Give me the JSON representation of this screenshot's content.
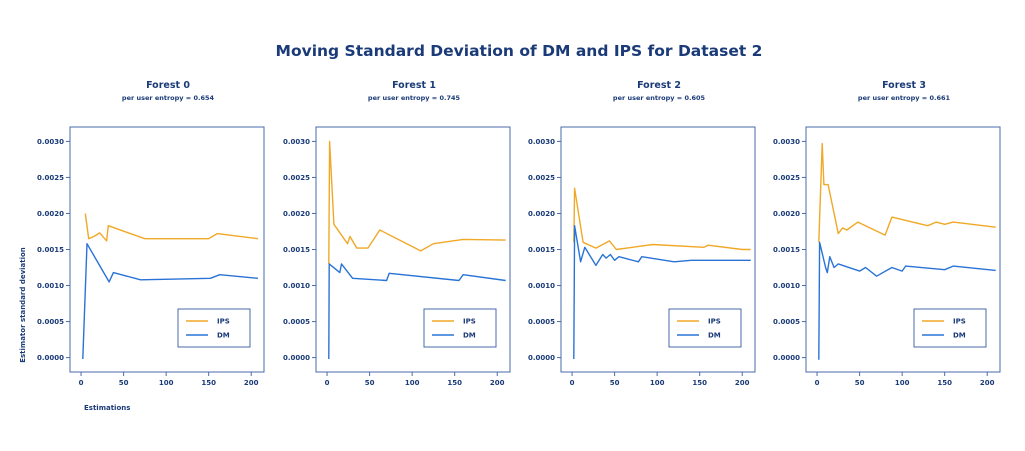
{
  "title": "Moving Standard Deviation of DM and IPS for Dataset 2",
  "ylabel": "Estimator standard deviation",
  "xlabel": "Estimations",
  "colors": {
    "IPS": "#f0a827",
    "DM": "#2a73d6",
    "axis": "#4a6aa8",
    "text": "#1a3a78"
  },
  "chart_data": [
    {
      "type": "line",
      "title": "Forest 0",
      "subtitle": "per user entropy = 0.654",
      "xlim": [
        -13,
        215
      ],
      "ylim": [
        -0.0002,
        0.0032
      ],
      "xticks": [
        "0",
        "50",
        "100",
        "150",
        "200"
      ],
      "yticks": [
        "0.0000",
        "0.0005",
        "0.0010",
        "0.0015",
        "0.0020",
        "0.0025",
        "0.0030"
      ],
      "legend": "lower-right",
      "series": [
        {
          "name": "IPS",
          "color": "#f0a827",
          "x": [
            5,
            9,
            15,
            22,
            30,
            32,
            75,
            150,
            160,
            208
          ],
          "y": [
            0.002,
            0.00165,
            0.00168,
            0.00173,
            0.00162,
            0.00183,
            0.00165,
            0.00165,
            0.00172,
            0.00165
          ]
        },
        {
          "name": "DM",
          "color": "#2a73d6",
          "x": [
            2,
            7,
            33,
            38,
            70,
            152,
            163,
            208
          ],
          "y": [
            -2e-05,
            0.00158,
            0.00105,
            0.00118,
            0.00108,
            0.0011,
            0.00115,
            0.0011
          ]
        }
      ]
    },
    {
      "type": "line",
      "title": "Forest 1",
      "subtitle": "per user entropy = 0.745",
      "xlim": [
        -13,
        215
      ],
      "ylim": [
        -0.0002,
        0.0032
      ],
      "xticks": [
        "0",
        "50",
        "100",
        "150",
        "200"
      ],
      "yticks": [
        "0.0000",
        "0.0005",
        "0.0010",
        "0.0015",
        "0.0020",
        "0.0025",
        "0.0030"
      ],
      "legend": "lower-right",
      "series": [
        {
          "name": "IPS",
          "color": "#f0a827",
          "x": [
            2,
            3,
            8,
            24,
            27,
            35,
            48,
            62,
            110,
            125,
            160,
            210
          ],
          "y": [
            0.0013,
            0.003,
            0.00185,
            0.00158,
            0.00168,
            0.00152,
            0.00152,
            0.00177,
            0.00148,
            0.00158,
            0.00164,
            0.00163
          ]
        },
        {
          "name": "DM",
          "color": "#2a73d6",
          "x": [
            2,
            2.5,
            15,
            17,
            30,
            70,
            73,
            155,
            160,
            210
          ],
          "y": [
            -2e-05,
            0.0013,
            0.00118,
            0.0013,
            0.0011,
            0.00107,
            0.00117,
            0.00107,
            0.00115,
            0.00107
          ]
        }
      ]
    },
    {
      "type": "line",
      "title": "Forest 2",
      "subtitle": "per user entropy = 0.605",
      "xlim": [
        -13,
        215
      ],
      "ylim": [
        -0.0002,
        0.0032
      ],
      "xticks": [
        "0",
        "50",
        "100",
        "150",
        "200"
      ],
      "yticks": [
        "0.0000",
        "0.0005",
        "0.0010",
        "0.0015",
        "0.0020",
        "0.0025",
        "0.0030"
      ],
      "legend": "lower-right",
      "series": [
        {
          "name": "IPS",
          "color": "#f0a827",
          "x": [
            2,
            3,
            13,
            28,
            44,
            52,
            95,
            155,
            160,
            200,
            210
          ],
          "y": [
            0.0016,
            0.00235,
            0.0016,
            0.00152,
            0.00162,
            0.0015,
            0.00157,
            0.00153,
            0.00156,
            0.0015,
            0.0015
          ]
        },
        {
          "name": "DM",
          "color": "#2a73d6",
          "x": [
            2,
            3,
            10,
            15,
            28,
            36,
            40,
            45,
            50,
            55,
            78,
            82,
            120,
            140,
            210
          ],
          "y": [
            -2e-05,
            0.00183,
            0.00133,
            0.00153,
            0.00128,
            0.00143,
            0.00138,
            0.00143,
            0.00135,
            0.0014,
            0.00133,
            0.0014,
            0.00133,
            0.00135,
            0.00135
          ]
        }
      ]
    },
    {
      "type": "line",
      "title": "Forest 3",
      "subtitle": "per user entropy = 0.661",
      "xlim": [
        -13,
        215
      ],
      "ylim": [
        -0.0002,
        0.0032
      ],
      "xticks": [
        "0",
        "50",
        "100",
        "150",
        "200"
      ],
      "yticks": [
        "0.0000",
        "0.0005",
        "0.0010",
        "0.0015",
        "0.0020",
        "0.0025",
        "0.0030"
      ],
      "legend": "lower-right",
      "series": [
        {
          "name": "IPS",
          "color": "#f0a827",
          "x": [
            2,
            6,
            8,
            13,
            25,
            30,
            35,
            48,
            80,
            88,
            130,
            140,
            150,
            160,
            210
          ],
          "y": [
            0.0016,
            0.00297,
            0.0024,
            0.0024,
            0.00172,
            0.0018,
            0.00177,
            0.00188,
            0.0017,
            0.00195,
            0.00183,
            0.00188,
            0.00185,
            0.00188,
            0.00181
          ]
        },
        {
          "name": "DM",
          "color": "#2a73d6",
          "x": [
            2,
            3,
            10,
            12,
            15,
            20,
            25,
            50,
            57,
            70,
            88,
            100,
            104,
            150,
            160,
            210
          ],
          "y": [
            -3e-05,
            0.0016,
            0.00125,
            0.00118,
            0.0014,
            0.00125,
            0.0013,
            0.0012,
            0.00125,
            0.00113,
            0.00125,
            0.0012,
            0.00127,
            0.00122,
            0.00127,
            0.00121
          ]
        }
      ]
    }
  ]
}
